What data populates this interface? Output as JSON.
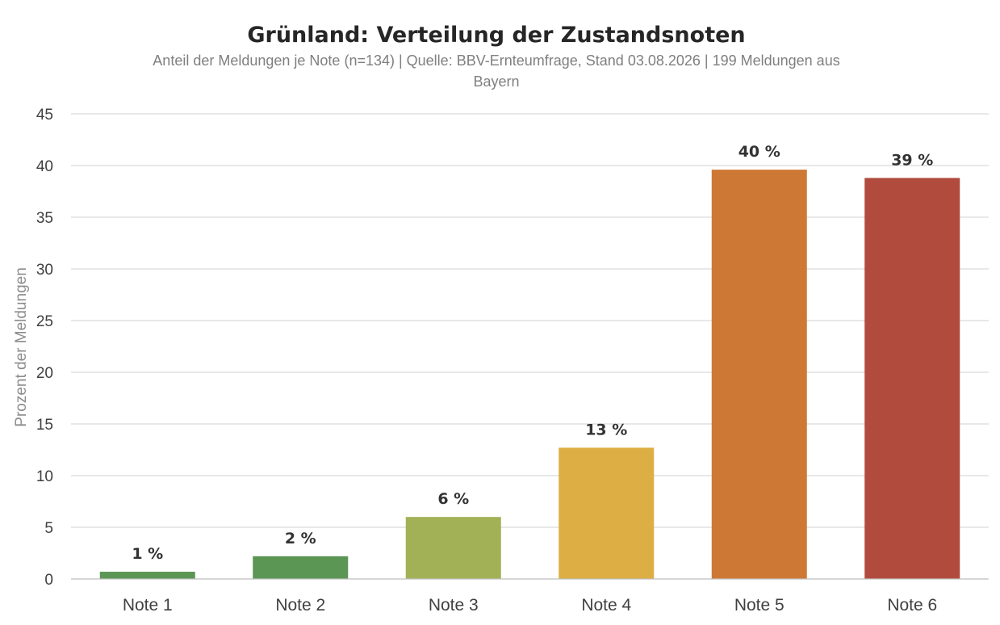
{
  "chart_data": {
    "type": "bar",
    "title": "Grünland: Verteilung der Zustandsnoten",
    "subtitle_line1": "Anteil der Meldungen je Note (n=134)  |  Quelle: BBV-Ernteumfrage, Stand 03.08.2026  |  199 Meldungen aus",
    "subtitle_line2": "Bayern",
    "xlabel": "",
    "ylabel": "Prozent der Meldungen",
    "ylim": [
      0,
      45
    ],
    "yticks": [
      0,
      5,
      10,
      15,
      20,
      25,
      30,
      35,
      40,
      45
    ],
    "grid": true,
    "categories": [
      "Note 1",
      "Note 2",
      "Note 3",
      "Note 4",
      "Note 5",
      "Note 6"
    ],
    "values": [
      0.7,
      2.2,
      6.0,
      12.7,
      39.6,
      38.8
    ],
    "data_labels": [
      "1 %",
      "2 %",
      "6 %",
      "13 %",
      "40 %",
      "39 %"
    ],
    "colors": [
      "#5b9654",
      "#5b9654",
      "#a2b155",
      "#ddae43",
      "#cd7935",
      "#b04b3e"
    ]
  }
}
